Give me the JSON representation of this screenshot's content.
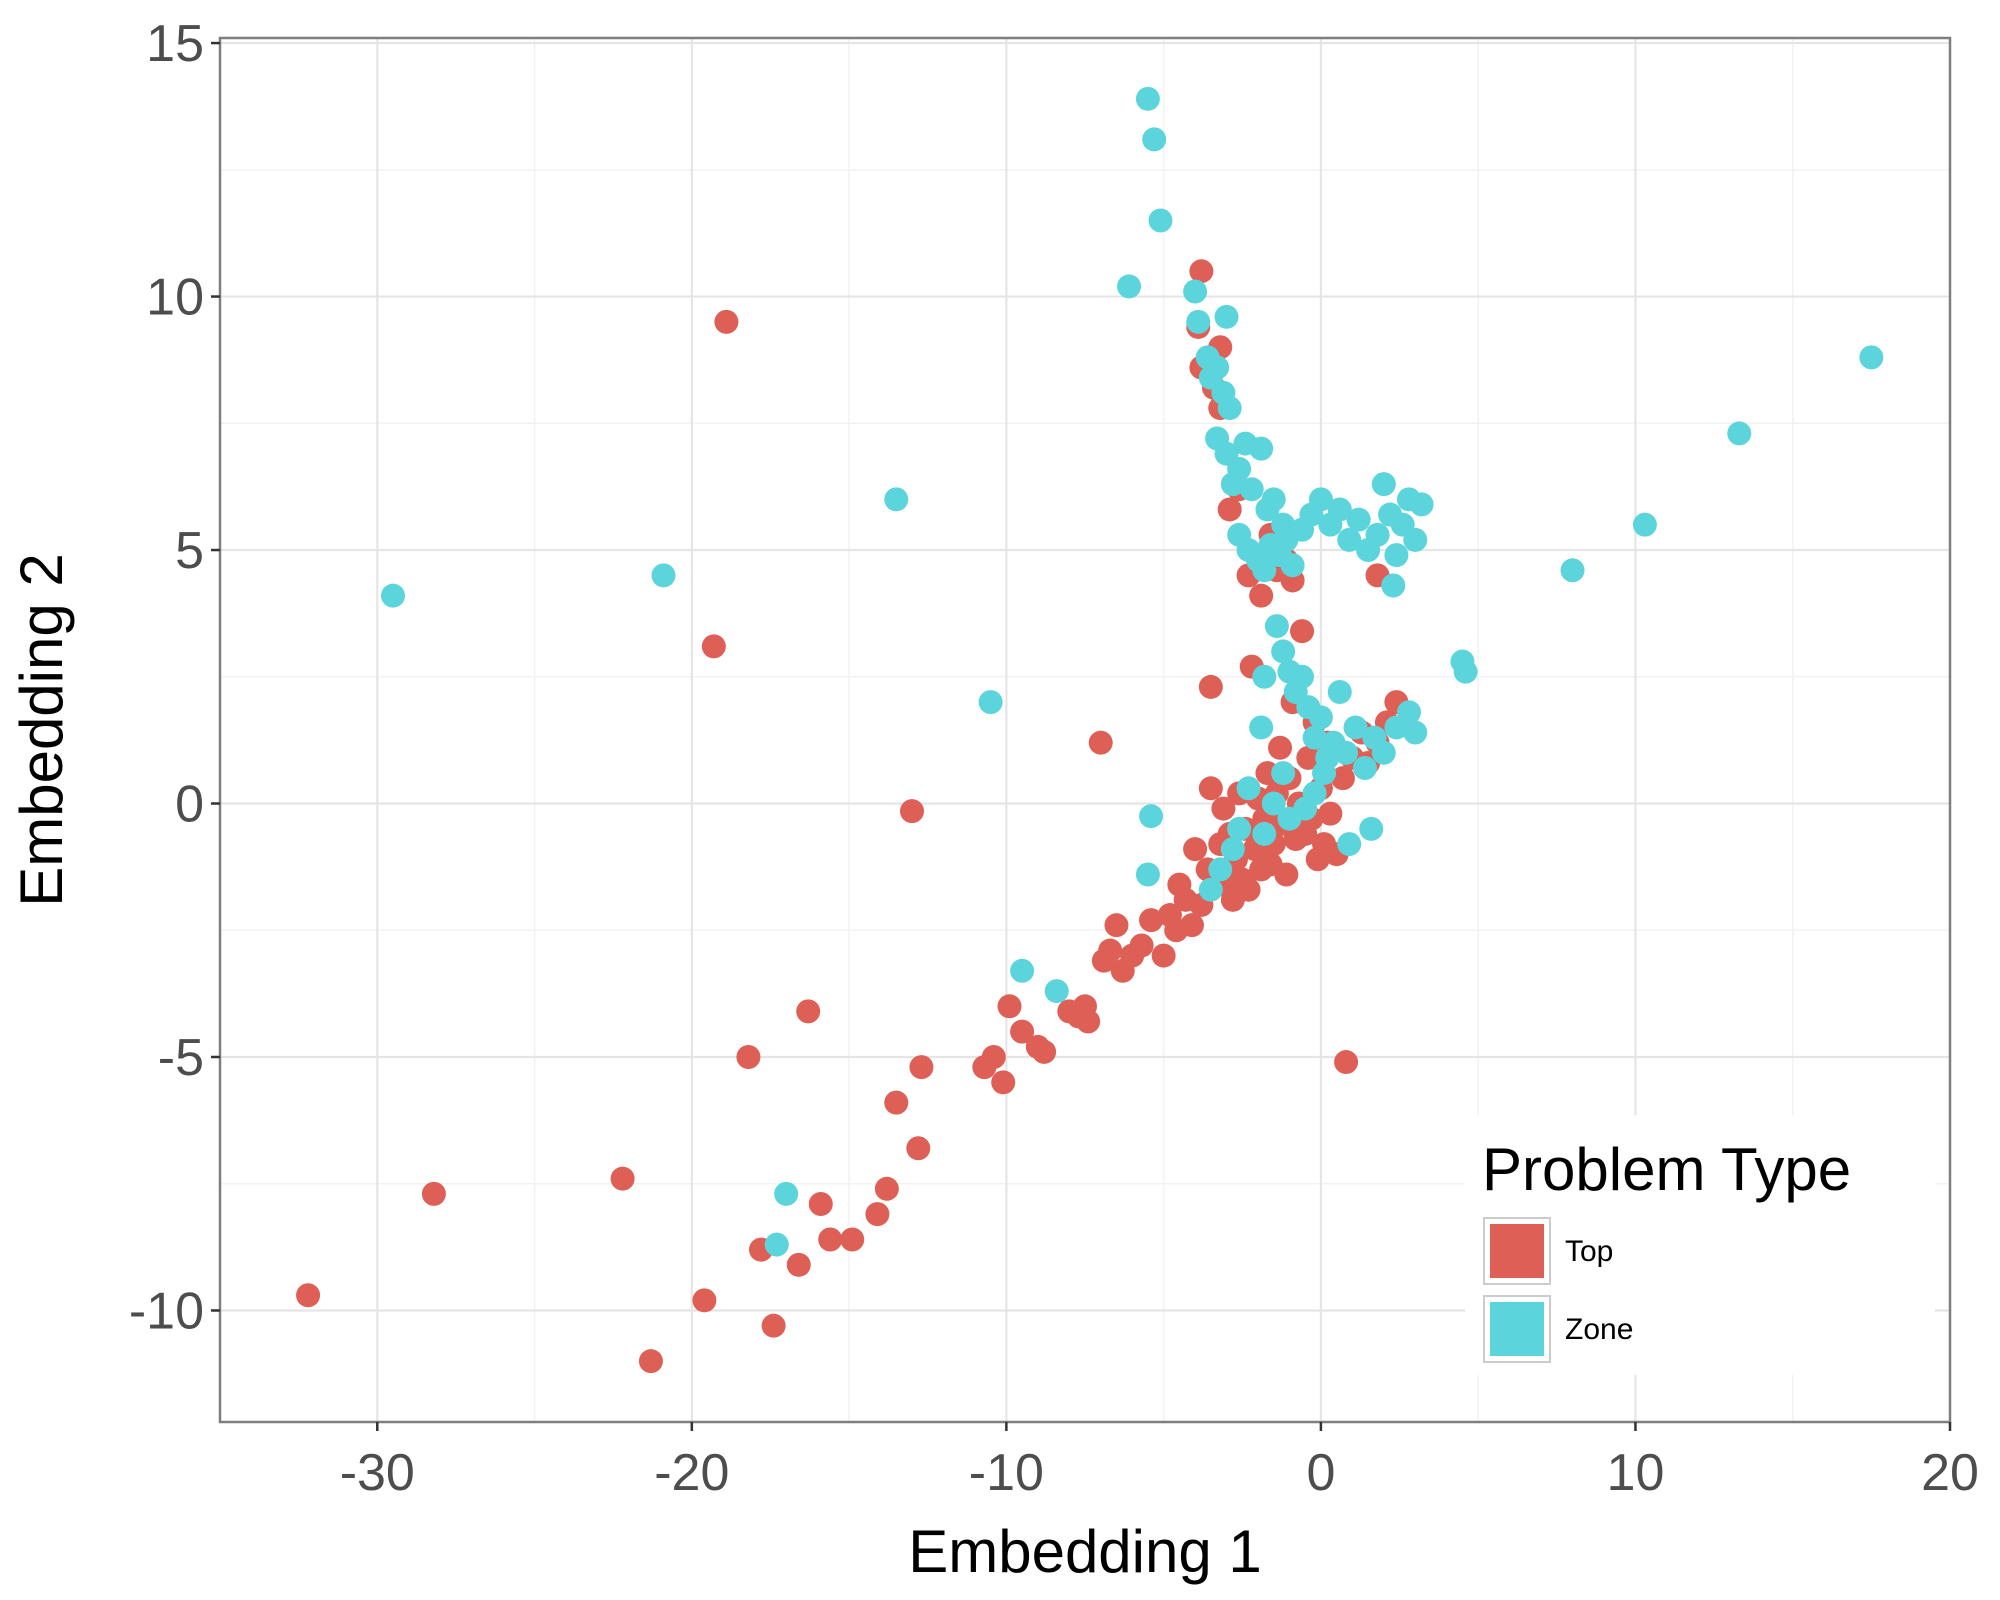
{
  "chart_data": {
    "type": "scatter",
    "xlabel": "Embedding 1",
    "ylabel": "Embedding 2",
    "xlim": [
      -35,
      20
    ],
    "ylim": [
      -12.2,
      15.1
    ],
    "x_ticks": [
      -30,
      -20,
      -10,
      0,
      10,
      20
    ],
    "y_ticks": [
      -10,
      -5,
      0,
      5,
      10,
      15
    ],
    "x_tick_labels": [
      "-30",
      "-20",
      "-10",
      "0",
      "10",
      "20"
    ],
    "y_tick_labels": [
      "-10",
      "-5",
      "0",
      "5",
      "10",
      "15"
    ],
    "grid": true,
    "legend": {
      "title": "Problem Type",
      "placement": "bottom-right"
    },
    "series": [
      {
        "name": "Top",
        "color": "#dd5f55",
        "points": [
          [
            -32.2,
            -9.7
          ],
          [
            -28.2,
            -7.7
          ],
          [
            -22.2,
            -7.4
          ],
          [
            -21.3,
            -11.0
          ],
          [
            -19.6,
            -9.8
          ],
          [
            -18.9,
            9.5
          ],
          [
            -19.3,
            3.1
          ],
          [
            -18.2,
            -5.0
          ],
          [
            -17.8,
            -8.8
          ],
          [
            -17.4,
            -10.3
          ],
          [
            -16.6,
            -9.1
          ],
          [
            -16.3,
            -4.1
          ],
          [
            -15.9,
            -7.9
          ],
          [
            -15.6,
            -8.6
          ],
          [
            -14.9,
            -8.6
          ],
          [
            -14.1,
            -8.1
          ],
          [
            -13.8,
            -7.6
          ],
          [
            -13.5,
            -5.9
          ],
          [
            -12.8,
            -6.8
          ],
          [
            -12.7,
            -5.2
          ],
          [
            -13.0,
            -0.15
          ],
          [
            -10.7,
            -5.2
          ],
          [
            -10.4,
            -5.0
          ],
          [
            -10.1,
            -5.5
          ],
          [
            -9.9,
            -4.0
          ],
          [
            -9.5,
            -4.5
          ],
          [
            -9.0,
            -4.8
          ],
          [
            -8.8,
            -4.9
          ],
          [
            -8.0,
            -4.1
          ],
          [
            -7.7,
            -4.2
          ],
          [
            -7.5,
            -4.0
          ],
          [
            -7.4,
            -4.3
          ],
          [
            -7.0,
            1.2
          ],
          [
            -6.9,
            -3.1
          ],
          [
            -6.7,
            -2.9
          ],
          [
            -6.5,
            -2.4
          ],
          [
            -6.3,
            -3.3
          ],
          [
            -6.0,
            -3.0
          ],
          [
            -5.7,
            -2.8
          ],
          [
            -5.4,
            -2.3
          ],
          [
            -5.0,
            -3.0
          ],
          [
            -4.8,
            -2.2
          ],
          [
            -4.6,
            -2.5
          ],
          [
            -4.5,
            -1.6
          ],
          [
            -4.3,
            -1.9
          ],
          [
            -4.1,
            -2.4
          ],
          [
            -4.0,
            -0.9
          ],
          [
            -3.8,
            -2.0
          ],
          [
            -3.6,
            -1.3
          ],
          [
            -3.5,
            0.3
          ],
          [
            -3.5,
            2.3
          ],
          [
            -3.3,
            -1.6
          ],
          [
            -3.2,
            -0.8
          ],
          [
            -3.1,
            -0.1
          ],
          [
            -3.0,
            -1.5
          ],
          [
            -2.9,
            -0.6
          ],
          [
            -2.8,
            -1.9
          ],
          [
            -2.7,
            -1.1
          ],
          [
            -2.6,
            0.2
          ],
          [
            -2.5,
            -1.5
          ],
          [
            -2.4,
            -0.5
          ],
          [
            -2.3,
            -1.7
          ],
          [
            -2.2,
            2.7
          ],
          [
            -2.1,
            -0.9
          ],
          [
            -2.0,
            0.1
          ],
          [
            -1.9,
            -1.3
          ],
          [
            -1.8,
            -0.3
          ],
          [
            -1.7,
            0.6
          ],
          [
            -1.6,
            -1.2
          ],
          [
            -1.5,
            -0.8
          ],
          [
            -1.4,
            0.2
          ],
          [
            -1.3,
            1.1
          ],
          [
            -1.2,
            -0.4
          ],
          [
            -1.1,
            -1.4
          ],
          [
            -1.0,
            0.5
          ],
          [
            -0.9,
            2.0
          ],
          [
            -0.8,
            -0.7
          ],
          [
            -0.7,
            0.0
          ],
          [
            -0.6,
            3.4
          ],
          [
            -0.5,
            -0.6
          ],
          [
            -0.4,
            0.9
          ],
          [
            -0.3,
            -0.3
          ],
          [
            -0.2,
            1.6
          ],
          [
            -0.1,
            -1.1
          ],
          [
            0.0,
            0.3
          ],
          [
            0.1,
            -0.8
          ],
          [
            0.2,
            1.2
          ],
          [
            0.3,
            -0.2
          ],
          [
            0.5,
            -1.0
          ],
          [
            0.7,
            0.5
          ],
          [
            0.8,
            -5.1
          ],
          [
            1.0,
            0.9
          ],
          [
            1.3,
            1.4
          ],
          [
            1.5,
            0.8
          ],
          [
            1.8,
            1.2
          ],
          [
            2.1,
            1.6
          ],
          [
            2.4,
            2.0
          ],
          [
            1.8,
            4.5
          ],
          [
            -0.9,
            4.4
          ],
          [
            -1.1,
            4.8
          ],
          [
            -1.4,
            4.6
          ],
          [
            -1.6,
            5.3
          ],
          [
            -1.9,
            4.1
          ],
          [
            -2.3,
            4.5
          ],
          [
            -2.6,
            6.2
          ],
          [
            -2.9,
            5.8
          ],
          [
            -3.2,
            7.8
          ],
          [
            -3.4,
            8.2
          ],
          [
            -3.8,
            8.6
          ],
          [
            -3.2,
            9.0
          ],
          [
            -3.9,
            9.4
          ],
          [
            -3.8,
            10.5
          ]
        ]
      },
      {
        "name": "Zone",
        "color": "#5bd5db",
        "points": [
          [
            -29.5,
            4.1
          ],
          [
            -20.9,
            4.5
          ],
          [
            -17.0,
            -7.7
          ],
          [
            -17.3,
            -8.7
          ],
          [
            -13.5,
            6.0
          ],
          [
            -10.5,
            2.0
          ],
          [
            -9.5,
            -3.3
          ],
          [
            -8.4,
            -3.7
          ],
          [
            -6.1,
            10.2
          ],
          [
            -5.5,
            13.9
          ],
          [
            -5.3,
            13.1
          ],
          [
            -5.1,
            11.5
          ],
          [
            -5.5,
            -1.4
          ],
          [
            -5.4,
            -0.25
          ],
          [
            -4.0,
            10.1
          ],
          [
            -3.9,
            9.5
          ],
          [
            -3.6,
            8.8
          ],
          [
            -3.5,
            8.4
          ],
          [
            -3.3,
            8.6
          ],
          [
            -3.0,
            9.6
          ],
          [
            -3.1,
            8.1
          ],
          [
            -2.9,
            7.8
          ],
          [
            -3.3,
            7.2
          ],
          [
            -3.0,
            6.9
          ],
          [
            -2.8,
            6.3
          ],
          [
            -2.6,
            6.6
          ],
          [
            -2.4,
            7.1
          ],
          [
            -2.2,
            6.2
          ],
          [
            -1.9,
            7.0
          ],
          [
            -1.7,
            5.8
          ],
          [
            -1.5,
            6.0
          ],
          [
            -1.2,
            5.5
          ],
          [
            -2.6,
            5.3
          ],
          [
            -2.3,
            5.0
          ],
          [
            -2.0,
            4.8
          ],
          [
            -1.8,
            4.6
          ],
          [
            -1.6,
            5.1
          ],
          [
            -1.3,
            4.9
          ],
          [
            -1.1,
            5.2
          ],
          [
            -0.9,
            4.7
          ],
          [
            -0.6,
            5.4
          ],
          [
            -0.3,
            5.7
          ],
          [
            0.0,
            6.0
          ],
          [
            0.3,
            5.5
          ],
          [
            0.6,
            5.8
          ],
          [
            0.9,
            5.2
          ],
          [
            1.2,
            5.6
          ],
          [
            1.5,
            5.0
          ],
          [
            1.8,
            5.3
          ],
          [
            2.0,
            6.3
          ],
          [
            2.2,
            5.7
          ],
          [
            2.4,
            4.9
          ],
          [
            2.6,
            5.5
          ],
          [
            2.8,
            6.0
          ],
          [
            3.0,
            5.2
          ],
          [
            3.2,
            5.9
          ],
          [
            2.3,
            4.3
          ],
          [
            -1.4,
            3.5
          ],
          [
            -1.2,
            3.0
          ],
          [
            -1.0,
            2.6
          ],
          [
            -0.8,
            2.2
          ],
          [
            -0.6,
            2.5
          ],
          [
            -1.8,
            2.5
          ],
          [
            -1.9,
            1.5
          ],
          [
            -0.4,
            1.9
          ],
          [
            -0.2,
            1.3
          ],
          [
            0.0,
            1.7
          ],
          [
            0.2,
            0.9
          ],
          [
            0.4,
            1.2
          ],
          [
            0.6,
            2.2
          ],
          [
            0.8,
            1.0
          ],
          [
            1.1,
            1.5
          ],
          [
            1.4,
            0.7
          ],
          [
            1.7,
            1.3
          ],
          [
            2.0,
            1.0
          ],
          [
            2.4,
            1.5
          ],
          [
            2.8,
            1.8
          ],
          [
            3.0,
            1.4
          ],
          [
            -0.2,
            0.2
          ],
          [
            0.1,
            0.6
          ],
          [
            -1.2,
            0.6
          ],
          [
            -1.5,
            0.0
          ],
          [
            -2.3,
            0.3
          ],
          [
            -2.6,
            -0.5
          ],
          [
            -2.8,
            -0.9
          ],
          [
            -3.2,
            -1.3
          ],
          [
            -3.5,
            -1.7
          ],
          [
            -1.8,
            -0.6
          ],
          [
            -1.0,
            -0.3
          ],
          [
            -0.5,
            -0.1
          ],
          [
            0.9,
            -0.8
          ],
          [
            1.6,
            -0.5
          ],
          [
            4.5,
            2.8
          ],
          [
            4.6,
            2.6
          ],
          [
            8.0,
            4.6
          ],
          [
            10.3,
            5.5
          ],
          [
            13.3,
            7.3
          ],
          [
            17.5,
            8.8
          ]
        ]
      }
    ]
  }
}
